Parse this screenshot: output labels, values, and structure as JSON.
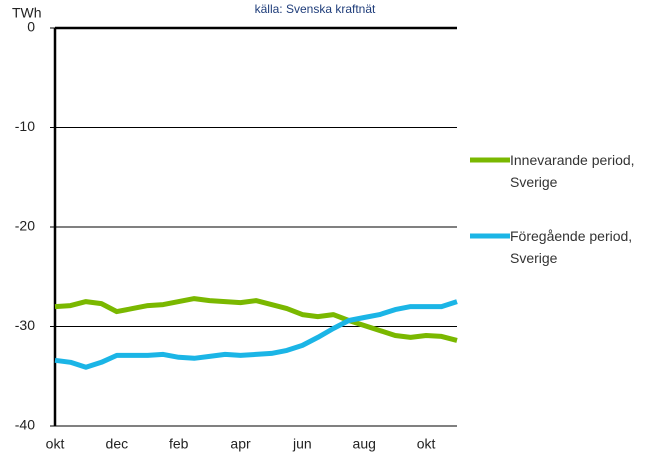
{
  "chart_data": {
    "type": "line",
    "source": "källa: Svenska kraftnät",
    "y_label": "TWh",
    "categories": [
      "okt",
      null,
      null,
      null,
      "dec",
      null,
      null,
      null,
      "feb",
      null,
      null,
      null,
      "apr",
      null,
      null,
      null,
      "jun",
      null,
      null,
      null,
      "aug",
      null,
      null,
      null,
      "okt",
      null,
      null
    ],
    "series": [
      {
        "name": "Innevarande period, Sverige",
        "color": "#7ab800",
        "values": [
          -28.0,
          -27.9,
          -27.5,
          -27.7,
          -28.5,
          -28.2,
          -27.9,
          -27.8,
          -27.5,
          -27.2,
          -27.4,
          -27.5,
          -27.6,
          -27.4,
          -27.8,
          -28.2,
          -28.8,
          -29.0,
          -28.8,
          -29.4,
          -29.9,
          -30.4,
          -30.9,
          -31.1,
          -30.9,
          -31.0,
          -31.4
        ]
      },
      {
        "name": "Föregående period, Sverige",
        "color": "#1bb5e6",
        "values": [
          -33.4,
          -33.6,
          -34.1,
          -33.6,
          -32.9,
          -32.9,
          -32.9,
          -32.8,
          -33.1,
          -33.2,
          -33.0,
          -32.8,
          -32.9,
          -32.8,
          -32.7,
          -32.4,
          -31.9,
          -31.1,
          -30.2,
          -29.4,
          -29.1,
          -28.8,
          -28.3,
          -28.0,
          -28.0,
          -28.0,
          -27.5
        ]
      }
    ],
    "ylim": [
      -40,
      0
    ],
    "yticks": [
      0,
      -10,
      -20,
      -30,
      -40
    ],
    "grid": true
  }
}
